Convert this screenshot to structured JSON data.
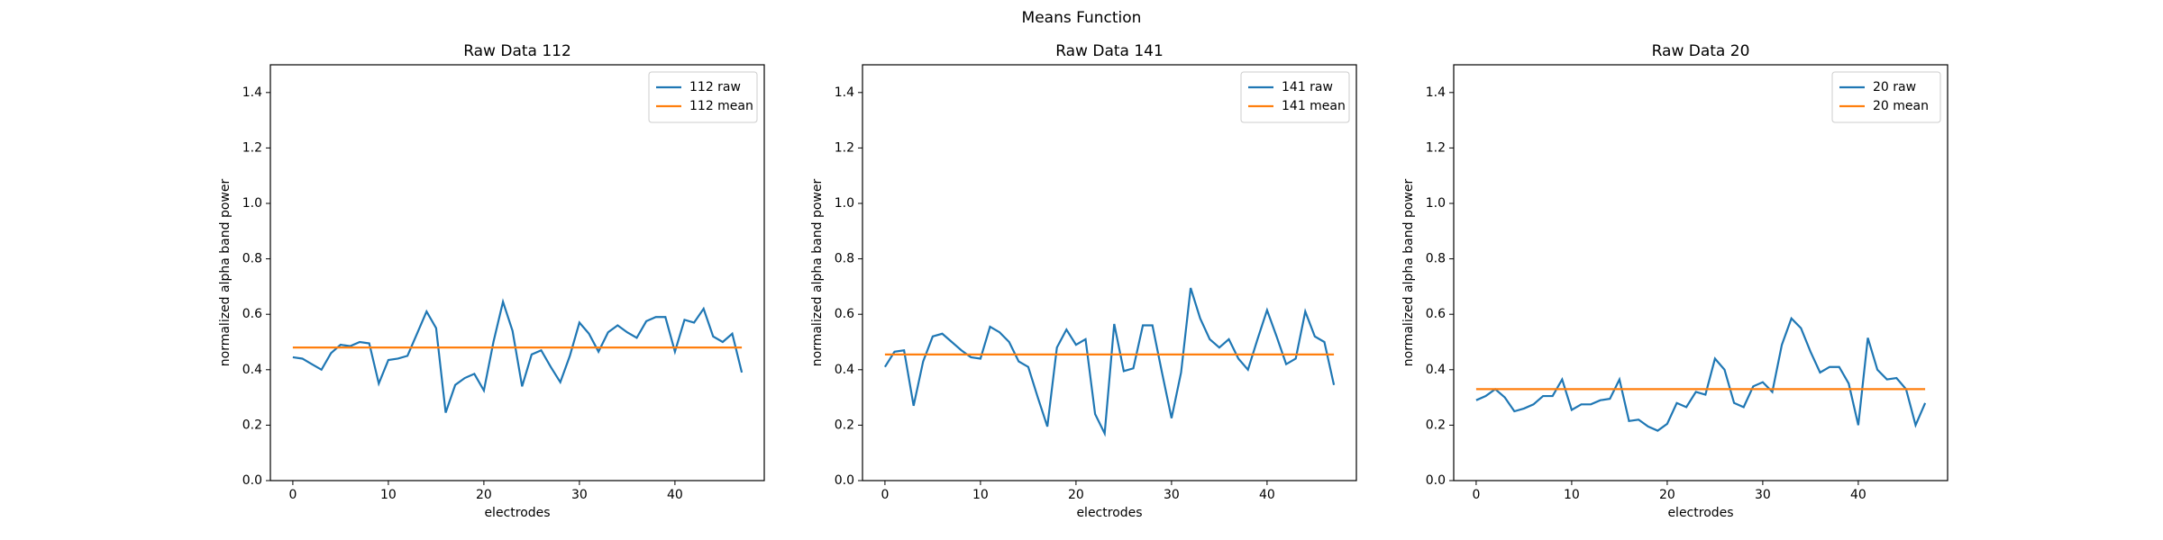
{
  "title": "Means Function",
  "chart_data": [
    {
      "type": "line",
      "title": "Raw Data 112",
      "xlabel": "electrodes",
      "ylabel": "normalized alpha band power",
      "x": [
        0,
        1,
        2,
        3,
        4,
        5,
        6,
        7,
        8,
        9,
        10,
        11,
        12,
        13,
        14,
        15,
        16,
        17,
        18,
        19,
        20,
        21,
        22,
        23,
        24,
        25,
        26,
        27,
        28,
        29,
        30,
        31,
        32,
        33,
        34,
        35,
        36,
        37,
        38,
        39,
        40,
        41,
        42,
        43,
        44,
        45,
        46,
        47
      ],
      "series": [
        {
          "name": "112 raw",
          "color": "#1f77b4",
          "values": [
            0.445,
            0.44,
            0.42,
            0.4,
            0.46,
            0.49,
            0.485,
            0.5,
            0.495,
            0.35,
            0.435,
            0.44,
            0.45,
            0.53,
            0.61,
            0.55,
            0.245,
            0.345,
            0.37,
            0.385,
            0.325,
            0.5,
            0.645,
            0.54,
            0.34,
            0.455,
            0.47,
            0.41,
            0.355,
            0.45,
            0.57,
            0.53,
            0.465,
            0.535,
            0.56,
            0.535,
            0.515,
            0.575,
            0.59,
            0.59,
            0.465,
            0.58,
            0.57,
            0.62,
            0.52,
            0.5,
            0.53,
            0.39
          ]
        },
        {
          "name": "112 mean",
          "color": "#ff7f0e",
          "values": [
            0.48,
            0.48,
            0.48,
            0.48,
            0.48,
            0.48,
            0.48,
            0.48,
            0.48,
            0.48,
            0.48,
            0.48,
            0.48,
            0.48,
            0.48,
            0.48,
            0.48,
            0.48,
            0.48,
            0.48,
            0.48,
            0.48,
            0.48,
            0.48,
            0.48,
            0.48,
            0.48,
            0.48,
            0.48,
            0.48,
            0.48,
            0.48,
            0.48,
            0.48,
            0.48,
            0.48,
            0.48,
            0.48,
            0.48,
            0.48,
            0.48,
            0.48,
            0.48,
            0.48,
            0.48,
            0.48,
            0.48,
            0.48
          ]
        }
      ],
      "xlim": [
        -2.35,
        49.35
      ],
      "ylim": [
        0,
        1.5
      ],
      "xticks": [
        0,
        10,
        20,
        30,
        40
      ],
      "yticks": [
        {
          "value": 0,
          "label": "0.0"
        },
        0.2,
        0.4,
        0.6,
        0.8,
        {
          "value": 1,
          "label": "1.0"
        },
        1.2,
        1.4
      ],
      "legend": "upper right"
    },
    {
      "type": "line",
      "title": "Raw Data 141",
      "xlabel": "electrodes",
      "ylabel": "normalized alpha band power",
      "x": [
        0,
        1,
        2,
        3,
        4,
        5,
        6,
        7,
        8,
        9,
        10,
        11,
        12,
        13,
        14,
        15,
        16,
        17,
        18,
        19,
        20,
        21,
        22,
        23,
        24,
        25,
        26,
        27,
        28,
        29,
        30,
        31,
        32,
        33,
        34,
        35,
        36,
        37,
        38,
        39,
        40,
        41,
        42,
        43,
        44,
        45,
        46,
        47
      ],
      "series": [
        {
          "name": "141 raw",
          "color": "#1f77b4",
          "values": [
            0.41,
            0.465,
            0.47,
            0.27,
            0.43,
            0.52,
            0.53,
            0.5,
            0.47,
            0.445,
            0.44,
            0.555,
            0.535,
            0.5,
            0.43,
            0.41,
            0.3,
            0.195,
            0.48,
            0.545,
            0.49,
            0.51,
            0.24,
            0.17,
            0.565,
            0.395,
            0.405,
            0.56,
            0.56,
            0.39,
            0.225,
            0.39,
            0.695,
            0.585,
            0.51,
            0.48,
            0.51,
            0.44,
            0.4,
            0.51,
            0.615,
            0.52,
            0.42,
            0.44,
            0.61,
            0.52,
            0.5,
            0.345
          ]
        },
        {
          "name": "141 mean",
          "color": "#ff7f0e",
          "values": [
            0.455,
            0.455,
            0.455,
            0.455,
            0.455,
            0.455,
            0.455,
            0.455,
            0.455,
            0.455,
            0.455,
            0.455,
            0.455,
            0.455,
            0.455,
            0.455,
            0.455,
            0.455,
            0.455,
            0.455,
            0.455,
            0.455,
            0.455,
            0.455,
            0.455,
            0.455,
            0.455,
            0.455,
            0.455,
            0.455,
            0.455,
            0.455,
            0.455,
            0.455,
            0.455,
            0.455,
            0.455,
            0.455,
            0.455,
            0.455,
            0.455,
            0.455,
            0.455,
            0.455,
            0.455,
            0.455,
            0.455,
            0.455
          ]
        }
      ],
      "xlim": [
        -2.35,
        49.35
      ],
      "ylim": [
        0,
        1.5
      ],
      "xticks": [
        0,
        10,
        20,
        30,
        40
      ],
      "yticks": [
        {
          "value": 0,
          "label": "0.0"
        },
        0.2,
        0.4,
        0.6,
        0.8,
        {
          "value": 1,
          "label": "1.0"
        },
        1.2,
        1.4
      ],
      "legend": "upper right"
    },
    {
      "type": "line",
      "title": "Raw Data 20",
      "xlabel": "electrodes",
      "ylabel": "normalized alpha band power",
      "x": [
        0,
        1,
        2,
        3,
        4,
        5,
        6,
        7,
        8,
        9,
        10,
        11,
        12,
        13,
        14,
        15,
        16,
        17,
        18,
        19,
        20,
        21,
        22,
        23,
        24,
        25,
        26,
        27,
        28,
        29,
        30,
        31,
        32,
        33,
        34,
        35,
        36,
        37,
        38,
        39,
        40,
        41,
        42,
        43,
        44,
        45,
        46,
        47
      ],
      "series": [
        {
          "name": "20 raw",
          "color": "#1f77b4",
          "values": [
            0.29,
            0.305,
            0.33,
            0.3,
            0.25,
            0.26,
            0.275,
            0.305,
            0.305,
            0.365,
            0.255,
            0.275,
            0.275,
            0.29,
            0.295,
            0.365,
            0.215,
            0.22,
            0.195,
            0.18,
            0.205,
            0.28,
            0.265,
            0.32,
            0.31,
            0.44,
            0.4,
            0.28,
            0.265,
            0.34,
            0.355,
            0.32,
            0.49,
            0.585,
            0.55,
            0.465,
            0.39,
            0.41,
            0.41,
            0.35,
            0.2,
            0.515,
            0.4,
            0.365,
            0.37,
            0.33,
            0.2,
            0.28
          ]
        },
        {
          "name": "20 mean",
          "color": "#ff7f0e",
          "values": [
            0.33,
            0.33,
            0.33,
            0.33,
            0.33,
            0.33,
            0.33,
            0.33,
            0.33,
            0.33,
            0.33,
            0.33,
            0.33,
            0.33,
            0.33,
            0.33,
            0.33,
            0.33,
            0.33,
            0.33,
            0.33,
            0.33,
            0.33,
            0.33,
            0.33,
            0.33,
            0.33,
            0.33,
            0.33,
            0.33,
            0.33,
            0.33,
            0.33,
            0.33,
            0.33,
            0.33,
            0.33,
            0.33,
            0.33,
            0.33,
            0.33,
            0.33,
            0.33,
            0.33,
            0.33,
            0.33,
            0.33,
            0.33
          ]
        }
      ],
      "xlim": [
        -2.35,
        49.35
      ],
      "ylim": [
        0,
        1.5
      ],
      "xticks": [
        0,
        10,
        20,
        30,
        40
      ],
      "yticks": [
        {
          "value": 0,
          "label": "0.0"
        },
        0.2,
        0.4,
        0.6,
        0.8,
        {
          "value": 1,
          "label": "1.0"
        },
        1.2,
        1.4
      ],
      "legend": "upper right"
    }
  ]
}
